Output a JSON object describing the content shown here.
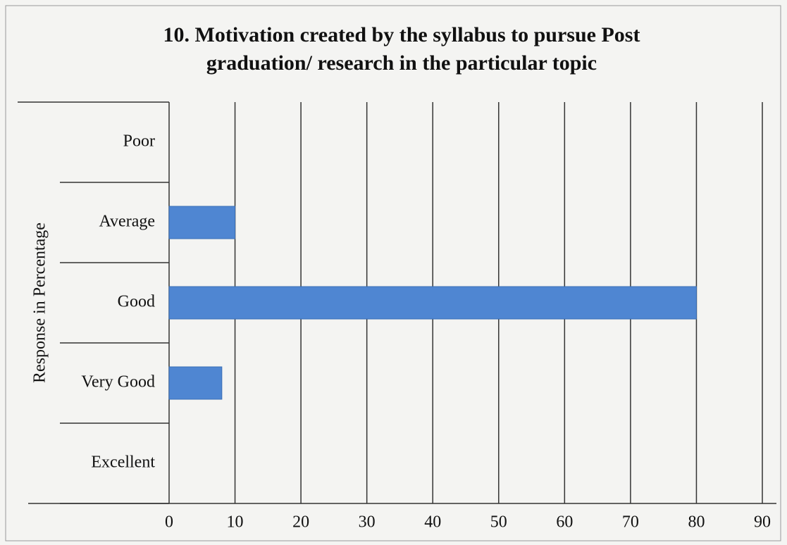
{
  "chart_data": {
    "type": "hbar",
    "title": "10. Motivation created by the syllabus to pursue Post graduation/ research in the particular topic",
    "y_label": "Response in Percentage",
    "categories": [
      "Poor",
      "Average",
      "Good",
      "Very Good",
      "Excellent"
    ],
    "values": [
      0,
      10,
      80,
      8,
      0
    ],
    "color": "#4f86d2",
    "xlim": [
      0,
      90
    ],
    "xticks": [
      0,
      10,
      20,
      30,
      40,
      50,
      60,
      70,
      80,
      90
    ],
    "grid": true
  }
}
